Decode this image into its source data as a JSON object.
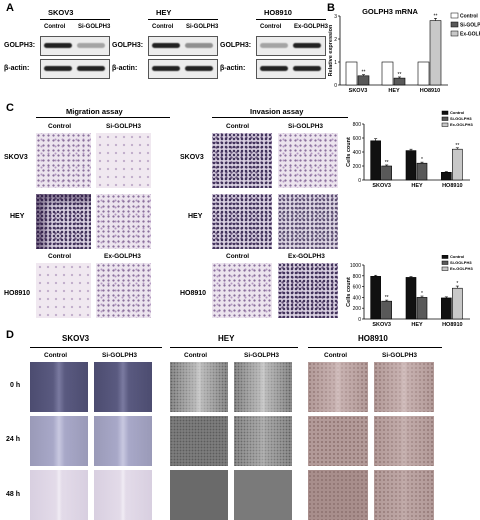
{
  "panelA": {
    "letter": "A",
    "blots": [
      {
        "cell": "SKOV3",
        "lanes": [
          "Control",
          "Si-GOLPH3"
        ],
        "target": "GOLPH3:",
        "loading": "β-actin:"
      },
      {
        "cell": "HEY",
        "lanes": [
          "Control",
          "Si-GOLPH3"
        ],
        "target": "GOLPH3:",
        "loading": "β-actin:"
      },
      {
        "cell": "HO8910",
        "lanes": [
          "Control",
          "Ex-GOLPH3"
        ],
        "target": "GOLPH3:",
        "loading": "β-actin:"
      }
    ]
  },
  "panelB": {
    "letter": "B",
    "legend": [
      "Control",
      "Si-GOLPH3",
      "Ex-GOLPH3"
    ]
  },
  "panelC": {
    "letter": "C",
    "migration_title": "Migration assay",
    "invasion_title": "Invasion assay",
    "row_labels": [
      "SKOV3",
      "HEY",
      "HO8910"
    ],
    "col_labels_top": [
      "Control",
      "Si-GOLPH3"
    ],
    "col_labels_bottom": [
      "Control",
      "Ex-GOLPH3"
    ],
    "legend": [
      "Control",
      "Si-GOLPH3",
      "Ex-GOLPH3"
    ]
  },
  "panelD": {
    "letter": "D",
    "groups": [
      {
        "cell": "SKOV3",
        "lanes": [
          "Control",
          "Si-GOLPH3"
        ]
      },
      {
        "cell": "HEY",
        "lanes": [
          "Control",
          "Si-GOLPH3"
        ]
      },
      {
        "cell": "HO8910",
        "lanes": [
          "Control",
          "Si-GOLPH3"
        ]
      }
    ],
    "times": [
      "0 h",
      "24 h",
      "48 h"
    ]
  },
  "colors": {
    "control": "#ffffff",
    "si": "#595959",
    "ex": "#c8c8c8",
    "black": "#111111"
  },
  "chart_data": [
    {
      "type": "bar",
      "title": "GOLPH3 mRNA",
      "ylabel": "Relative expression",
      "ylim": [
        0,
        3
      ],
      "yticks": [
        "0",
        "1",
        "2",
        "3"
      ],
      "categories": [
        "SKOV3",
        "HEY",
        "HO8910"
      ],
      "series": [
        {
          "name": "Control",
          "values": [
            1,
            1,
            1
          ],
          "errors": [
            0,
            0,
            0
          ],
          "sig": [
            "",
            "",
            ""
          ]
        },
        {
          "name": "Si-GOLPH3",
          "values": [
            0.4,
            0.3,
            null
          ],
          "errors": [
            0.05,
            0.05,
            null
          ],
          "sig": [
            "**",
            "**",
            ""
          ]
        },
        {
          "name": "Ex-GOLPH3",
          "values": [
            null,
            null,
            2.8
          ],
          "errors": [
            null,
            null,
            0.1
          ],
          "sig": [
            "",
            "",
            "**"
          ]
        }
      ]
    },
    {
      "type": "bar",
      "ylabel": "Cells count",
      "ylim": [
        0,
        800
      ],
      "yticks": [
        "0",
        "200",
        "400",
        "600",
        "800"
      ],
      "categories": [
        "SKOV3",
        "HEY",
        "HO8910"
      ],
      "series": [
        {
          "name": "Control",
          "values": [
            560,
            420,
            110
          ],
          "errors": [
            30,
            20,
            10
          ],
          "sig": [
            "",
            "",
            ""
          ]
        },
        {
          "name": "Si-GOLPH3",
          "values": [
            200,
            240,
            null
          ],
          "errors": [
            15,
            15,
            null
          ],
          "sig": [
            "**",
            "*",
            ""
          ]
        },
        {
          "name": "Ex-GOLPH3",
          "values": [
            null,
            null,
            440
          ],
          "errors": [
            null,
            null,
            20
          ],
          "sig": [
            "",
            "",
            "**"
          ]
        }
      ]
    },
    {
      "type": "bar",
      "ylabel": "Cells count",
      "ylim": [
        0,
        1000
      ],
      "yticks": [
        "0",
        "200",
        "400",
        "600",
        "800",
        "1000"
      ],
      "categories": [
        "SKOV3",
        "HEY",
        "HO8910"
      ],
      "series": [
        {
          "name": "Control",
          "values": [
            790,
            770,
            390
          ],
          "errors": [
            20,
            15,
            20
          ],
          "sig": [
            "",
            "",
            ""
          ]
        },
        {
          "name": "Si-GOLPH3",
          "values": [
            330,
            400,
            null
          ],
          "errors": [
            20,
            25,
            null
          ],
          "sig": [
            "**",
            "*",
            ""
          ]
        },
        {
          "name": "Ex-GOLPH3",
          "values": [
            null,
            null,
            570
          ],
          "errors": [
            null,
            null,
            40
          ],
          "sig": [
            "",
            "",
            "*"
          ]
        }
      ]
    }
  ]
}
